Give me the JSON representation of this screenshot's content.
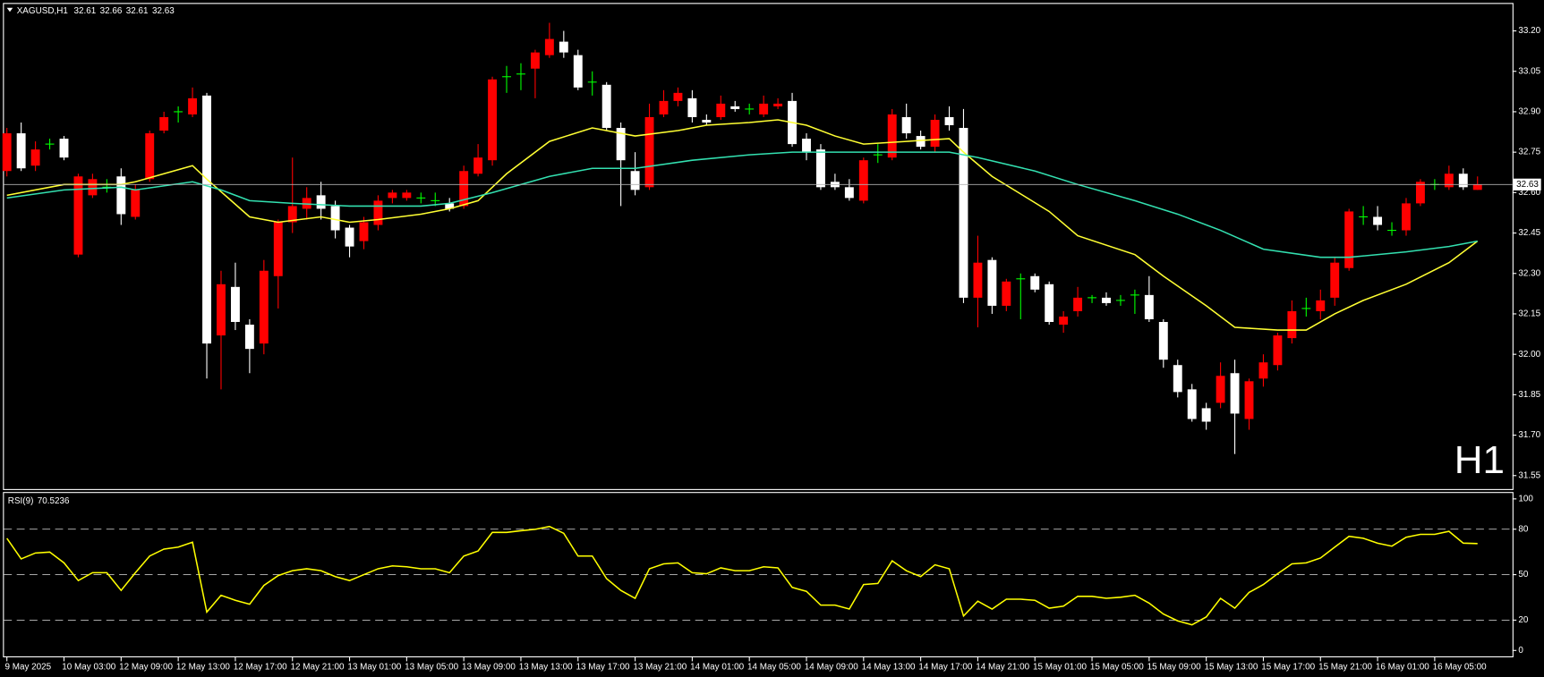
{
  "chart_data": [
    {
      "type": "candlestick",
      "title": "XAGUSD,H1",
      "watermark": "H1",
      "bull_color": "#ff0000",
      "bear_color": "#ffffff",
      "doji_color": "#00ff00",
      "bid_line_color": "#b0b0b0",
      "categories": [
        "9 May 2025",
        null,
        null,
        null,
        "10 May 03:00",
        null,
        null,
        null,
        "12 May 09:00",
        null,
        null,
        null,
        "12 May 13:00",
        null,
        null,
        null,
        "12 May 17:00",
        null,
        null,
        null,
        "12 May 21:00",
        null,
        null,
        null,
        "13 May 01:00",
        null,
        null,
        null,
        "13 May 05:00",
        null,
        null,
        null,
        "13 May 09:00",
        null,
        null,
        null,
        "13 May 13:00",
        null,
        null,
        null,
        "13 May 17:00",
        null,
        null,
        null,
        "13 May 21:00",
        null,
        null,
        null,
        "14 May 01:00",
        null,
        null,
        null,
        "14 May 05:00",
        null,
        null,
        null,
        "14 May 09:00",
        null,
        null,
        null,
        "14 May 13:00",
        null,
        null,
        null,
        "14 May 17:00",
        null,
        null,
        null,
        "14 May 21:00",
        null,
        null,
        null,
        "15 May 01:00",
        null,
        null,
        null,
        "15 May 05:00",
        null,
        null,
        null,
        "15 May 09:00",
        null,
        null,
        null,
        "15 May 13:00",
        null,
        null,
        null,
        "15 May 17:00",
        null,
        null,
        null,
        "15 May 21:00",
        null,
        null,
        null,
        "16 May 01:00",
        null,
        null,
        null,
        "16 May 05:00",
        null,
        null,
        null
      ],
      "open": [
        32.68,
        32.82,
        32.7,
        32.78,
        32.8,
        32.37,
        32.59,
        32.62,
        32.66,
        32.51,
        32.65,
        32.83,
        32.9,
        32.89,
        32.96,
        32.07,
        32.25,
        32.11,
        32.04,
        32.29,
        32.49,
        32.54,
        32.59,
        32.55,
        32.47,
        32.42,
        32.48,
        32.58,
        32.58,
        32.58,
        32.57,
        32.56,
        32.55,
        32.67,
        32.72,
        33.03,
        33.04,
        33.06,
        33.11,
        33.16,
        33.11,
        33.01,
        33.0,
        32.84,
        32.68,
        32.62,
        32.89,
        32.94,
        32.95,
        32.87,
        32.88,
        32.92,
        32.91,
        32.89,
        32.92,
        32.94,
        32.8,
        32.76,
        32.64,
        32.62,
        32.57,
        32.74,
        32.73,
        32.88,
        32.81,
        32.77,
        32.88,
        32.84,
        32.21,
        32.35,
        32.18,
        32.28,
        32.29,
        32.26,
        32.11,
        32.16,
        32.21,
        32.21,
        32.2,
        32.22,
        32.22,
        32.12,
        31.96,
        31.87,
        31.8,
        31.82,
        31.93,
        31.76,
        31.91,
        31.96,
        32.06,
        32.17,
        32.16,
        32.21,
        32.32,
        32.51,
        32.51,
        32.46,
        32.46,
        32.56,
        32.63,
        32.62,
        32.67,
        32.61
      ],
      "high": [
        32.84,
        32.86,
        32.79,
        32.8,
        32.81,
        32.67,
        32.67,
        32.65,
        32.69,
        32.63,
        32.83,
        32.9,
        32.92,
        32.99,
        32.97,
        32.31,
        32.34,
        32.13,
        32.35,
        32.5,
        32.73,
        32.62,
        32.64,
        32.57,
        32.48,
        32.51,
        32.59,
        32.61,
        32.61,
        32.6,
        32.6,
        32.58,
        32.7,
        32.78,
        33.03,
        33.07,
        33.08,
        33.13,
        33.23,
        33.2,
        33.13,
        33.05,
        33.01,
        32.86,
        32.75,
        32.93,
        32.98,
        32.99,
        32.98,
        32.89,
        32.96,
        32.94,
        32.93,
        32.96,
        32.95,
        32.97,
        32.82,
        32.78,
        32.67,
        32.65,
        32.73,
        32.78,
        32.91,
        32.93,
        32.83,
        32.89,
        32.92,
        32.91,
        32.44,
        32.36,
        32.28,
        32.3,
        32.3,
        32.27,
        32.16,
        32.25,
        32.22,
        32.23,
        32.22,
        32.24,
        32.29,
        32.13,
        31.98,
        31.89,
        31.82,
        31.97,
        31.98,
        31.91,
        32.0,
        32.08,
        32.2,
        32.21,
        32.24,
        32.36,
        32.54,
        32.55,
        32.55,
        32.49,
        32.58,
        32.65,
        32.65,
        32.7,
        32.69,
        32.66
      ],
      "low": [
        32.66,
        32.68,
        32.68,
        32.76,
        32.72,
        32.36,
        32.58,
        32.6,
        32.48,
        32.5,
        32.64,
        32.82,
        32.86,
        32.88,
        31.91,
        31.87,
        32.09,
        31.93,
        32.0,
        32.17,
        32.45,
        32.5,
        32.5,
        32.43,
        32.36,
        32.39,
        32.46,
        32.56,
        32.57,
        32.56,
        32.55,
        32.53,
        32.54,
        32.66,
        32.7,
        32.97,
        32.98,
        32.95,
        33.1,
        33.1,
        32.98,
        32.96,
        32.83,
        32.55,
        32.59,
        32.61,
        32.88,
        32.92,
        32.86,
        32.85,
        32.87,
        32.9,
        32.89,
        32.88,
        32.91,
        32.77,
        32.72,
        32.61,
        32.61,
        32.57,
        32.56,
        32.71,
        32.72,
        32.8,
        32.76,
        32.75,
        32.83,
        32.19,
        32.1,
        32.15,
        32.16,
        32.13,
        32.23,
        32.11,
        32.08,
        32.14,
        32.19,
        32.18,
        32.18,
        32.15,
        32.12,
        31.95,
        31.84,
        31.75,
        31.72,
        31.8,
        31.63,
        31.72,
        31.88,
        31.94,
        32.04,
        32.14,
        32.13,
        32.18,
        32.31,
        32.48,
        32.46,
        32.44,
        32.44,
        32.55,
        32.61,
        32.61,
        32.61,
        32.61
      ],
      "close": [
        32.82,
        32.69,
        32.76,
        32.78,
        32.73,
        32.66,
        32.65,
        32.62,
        32.52,
        32.61,
        32.82,
        32.88,
        32.9,
        32.95,
        32.04,
        32.26,
        32.12,
        32.02,
        32.31,
        32.49,
        32.55,
        32.58,
        32.54,
        32.46,
        32.4,
        32.49,
        32.57,
        32.6,
        32.6,
        32.58,
        32.57,
        32.54,
        32.68,
        32.73,
        33.02,
        33.03,
        33.04,
        33.12,
        33.17,
        33.12,
        32.99,
        33.01,
        32.84,
        32.72,
        32.61,
        32.88,
        32.94,
        32.97,
        32.88,
        32.86,
        32.93,
        32.91,
        32.91,
        32.93,
        32.93,
        32.78,
        32.75,
        32.62,
        32.62,
        32.58,
        32.72,
        32.74,
        32.89,
        32.82,
        32.77,
        32.87,
        32.85,
        32.21,
        32.34,
        32.18,
        32.27,
        32.28,
        32.24,
        32.12,
        32.14,
        32.21,
        32.21,
        32.19,
        32.2,
        32.22,
        32.13,
        31.98,
        31.86,
        31.76,
        31.75,
        31.92,
        31.78,
        31.9,
        31.97,
        32.07,
        32.16,
        32.17,
        32.2,
        32.34,
        32.53,
        32.51,
        32.48,
        32.46,
        32.56,
        32.64,
        32.63,
        32.67,
        32.62,
        32.63
      ],
      "ma": [
        {
          "color": "#ffff33",
          "x": [
            0,
            4,
            8,
            9,
            13,
            14,
            17,
            19,
            22,
            24,
            26,
            29,
            31,
            33,
            35,
            38,
            41,
            44,
            47,
            49,
            52,
            54,
            56,
            58,
            60,
            63,
            66,
            67,
            69,
            73,
            75,
            79,
            81,
            84,
            86,
            89,
            91,
            93,
            95,
            98,
            101,
            103
          ],
          "values": [
            32.59,
            32.63,
            32.63,
            32.64,
            32.7,
            32.65,
            32.51,
            32.49,
            32.51,
            32.49,
            32.5,
            32.52,
            32.54,
            32.57,
            32.67,
            32.79,
            32.84,
            32.81,
            32.83,
            32.85,
            32.86,
            32.87,
            32.85,
            32.81,
            32.78,
            32.79,
            32.8,
            32.75,
            32.66,
            32.53,
            32.44,
            32.37,
            32.29,
            32.18,
            32.1,
            32.09,
            32.09,
            32.15,
            32.2,
            32.26,
            32.34,
            32.42
          ]
        },
        {
          "color": "#33e0b0",
          "x": [
            0,
            4,
            8,
            9,
            13,
            15,
            17,
            20,
            24,
            29,
            31,
            34,
            38,
            41,
            44,
            48,
            52,
            55,
            57,
            60,
            64,
            66,
            68,
            72,
            75,
            79,
            82,
            85,
            88,
            92,
            94,
            98,
            101,
            103
          ],
          "values": [
            32.58,
            32.61,
            32.62,
            32.61,
            32.64,
            32.61,
            32.57,
            32.56,
            32.55,
            32.55,
            32.56,
            32.6,
            32.66,
            32.69,
            32.69,
            32.72,
            32.74,
            32.75,
            32.75,
            32.75,
            32.75,
            32.75,
            32.73,
            32.68,
            32.63,
            32.57,
            32.52,
            32.46,
            32.39,
            32.36,
            32.36,
            32.38,
            32.4,
            32.42
          ]
        }
      ],
      "ylim": [
        31.5,
        33.3
      ],
      "yticks": [
        31.55,
        {
          "value": 31.7,
          "label": "31.70"
        },
        31.85,
        {
          "value": 32.0,
          "label": "32.00"
        },
        32.15,
        {
          "value": 32.3,
          "label": "32.30"
        },
        32.45,
        {
          "value": 32.6,
          "label": "32.60"
        },
        32.75,
        {
          "value": 32.9,
          "label": "32.90"
        },
        33.05,
        {
          "value": 33.2,
          "label": "33.20"
        }
      ]
    },
    {
      "type": "line",
      "title": "RSI(9)",
      "color": "#ffff00",
      "level_color": "#c0c0c0",
      "values": [
        74.0,
        60.4,
        64.3,
        64.9,
        57.8,
        46.1,
        51.3,
        51.3,
        39.6,
        51.3,
        62.3,
        66.9,
        68.2,
        71.4,
        25.3,
        36.4,
        33.1,
        30.5,
        42.9,
        49.4,
        52.6,
        53.9,
        52.6,
        48.7,
        46.1,
        50.0,
        53.9,
        55.8,
        55.2,
        53.9,
        53.9,
        51.3,
        62.3,
        65.6,
        77.9,
        77.9,
        79.0,
        79.9,
        81.8,
        77.3,
        62.3,
        62.3,
        47.4,
        39.6,
        34.4,
        53.9,
        57.1,
        57.8,
        51.3,
        50.6,
        54.5,
        52.6,
        52.6,
        55.2,
        54.5,
        41.6,
        39.0,
        29.9,
        29.9,
        27.3,
        43.5,
        44.2,
        59.1,
        52.6,
        48.7,
        56.5,
        53.9,
        22.7,
        32.5,
        27.3,
        33.8,
        33.8,
        33.1,
        27.9,
        29.2,
        35.7,
        35.7,
        34.4,
        35.1,
        36.4,
        31.2,
        24.0,
        19.5,
        16.9,
        22.1,
        34.4,
        27.9,
        38.3,
        43.5,
        50.6,
        57.1,
        57.8,
        61.0,
        68.2,
        75.3,
        74.0,
        70.8,
        68.8,
        74.7,
        76.6,
        76.6,
        78.6,
        70.8,
        70.5236
      ],
      "ylim": [
        0,
        100
      ],
      "yticks": [
        0,
        20,
        50,
        80,
        100
      ],
      "levels": [
        20,
        50,
        80
      ]
    }
  ]
}
